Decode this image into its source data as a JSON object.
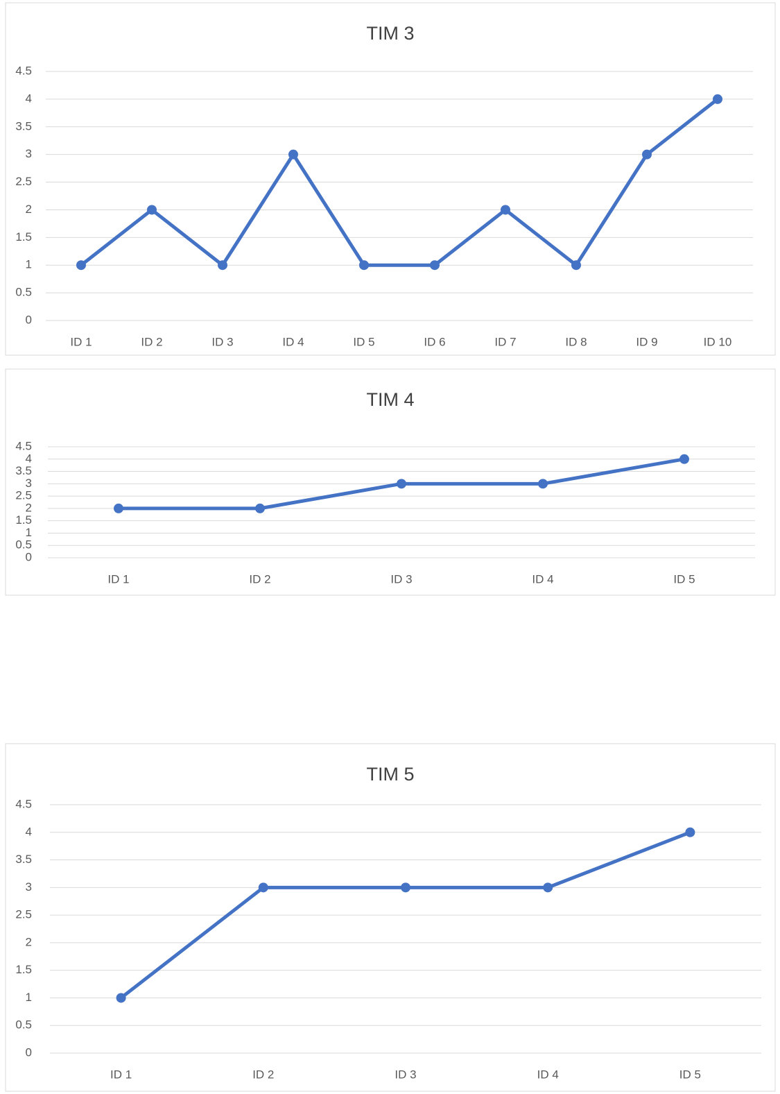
{
  "chart_data": [
    {
      "type": "line",
      "title": "TIM 3",
      "categories": [
        "ID 1",
        "ID 2",
        "ID 3",
        "ID 4",
        "ID 5",
        "ID 6",
        "ID 7",
        "ID 8",
        "ID 9",
        "ID 10"
      ],
      "values": [
        1,
        2,
        1,
        3,
        1,
        1,
        2,
        1,
        3,
        4
      ],
      "color": "#4472c4",
      "ylim": [
        0,
        4.5
      ],
      "yticks": [
        0,
        0.5,
        1,
        1.5,
        2,
        2.5,
        3,
        3.5,
        4,
        4.5
      ],
      "grid": true
    },
    {
      "type": "line",
      "title": "TIM 4",
      "categories": [
        "ID 1",
        "ID 2",
        "ID 3",
        "ID 4",
        "ID 5"
      ],
      "values": [
        2,
        2,
        3,
        3,
        4
      ],
      "color": "#4472c4",
      "ylim": [
        0,
        4.5
      ],
      "yticks": [
        0,
        0.5,
        1,
        1.5,
        2,
        2.5,
        3,
        3.5,
        4,
        4.5
      ],
      "grid": true
    },
    {
      "type": "line",
      "title": "TIM 5",
      "categories": [
        "ID 1",
        "ID 2",
        "ID 3",
        "ID 4",
        "ID 5"
      ],
      "values": [
        1,
        3,
        3,
        3,
        4
      ],
      "color": "#4472c4",
      "ylim": [
        0,
        4.5
      ],
      "yticks": [
        0,
        0.5,
        1,
        1.5,
        2,
        2.5,
        3,
        3.5,
        4,
        4.5
      ],
      "grid": true
    }
  ]
}
